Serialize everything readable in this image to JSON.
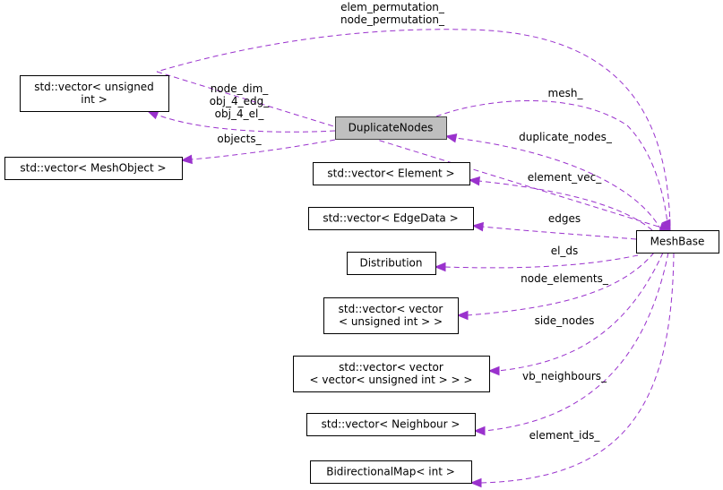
{
  "nodes": [
    {
      "id": "vec_uint",
      "lines": [
        "std::vector< unsigned",
        "int >"
      ]
    },
    {
      "id": "duplicate_nodes",
      "lines": [
        "DuplicateNodes"
      ],
      "focus": true
    },
    {
      "id": "vec_meshobject",
      "lines": [
        "std::vector< MeshObject >"
      ]
    },
    {
      "id": "vec_element",
      "lines": [
        "std::vector< Element >"
      ]
    },
    {
      "id": "vec_edgedata",
      "lines": [
        "std::vector< EdgeData >"
      ]
    },
    {
      "id": "distribution",
      "lines": [
        "Distribution"
      ]
    },
    {
      "id": "vec_vec_uint",
      "lines": [
        "std::vector< vector",
        "< unsigned int > >"
      ]
    },
    {
      "id": "vec_vec_vec_uint",
      "lines": [
        "std::vector< vector",
        "< vector< unsigned int > > >"
      ]
    },
    {
      "id": "vec_neighbour",
      "lines": [
        "std::vector< Neighbour >"
      ]
    },
    {
      "id": "bidi_map",
      "lines": [
        "BidirectionalMap< int >"
      ]
    },
    {
      "id": "mesh_base",
      "lines": [
        "MeshBase"
      ]
    }
  ],
  "edges": [
    {
      "from": "mesh_base",
      "to": "vec_uint",
      "labels": [
        "elem_permutation_",
        "node_permutation_"
      ]
    },
    {
      "from": "duplicate_nodes",
      "to": "vec_uint",
      "labels": [
        "node_dim_",
        "obj_4_edg_",
        "obj_4_el_"
      ]
    },
    {
      "from": "duplicate_nodes",
      "to": "vec_meshobject",
      "labels": [
        "objects_"
      ]
    },
    {
      "from": "duplicate_nodes",
      "to": "mesh_base",
      "labels": [
        "mesh_"
      ]
    },
    {
      "from": "mesh_base",
      "to": "duplicate_nodes",
      "labels": [
        "duplicate_nodes_"
      ]
    },
    {
      "from": "mesh_base",
      "to": "vec_element",
      "labels": [
        "element_vec_"
      ]
    },
    {
      "from": "mesh_base",
      "to": "vec_edgedata",
      "labels": [
        "edges"
      ]
    },
    {
      "from": "mesh_base",
      "to": "distribution",
      "labels": [
        "el_ds"
      ]
    },
    {
      "from": "mesh_base",
      "to": "vec_vec_uint",
      "labels": [
        "node_elements_"
      ]
    },
    {
      "from": "mesh_base",
      "to": "vec_vec_vec_uint",
      "labels": [
        "side_nodes"
      ]
    },
    {
      "from": "mesh_base",
      "to": "vec_neighbour",
      "labels": [
        "vb_neighbours_"
      ]
    },
    {
      "from": "mesh_base",
      "to": "bidi_map",
      "labels": [
        "element_ids_"
      ]
    }
  ],
  "colors": {
    "edge": "#9a32cd",
    "focus_fill": "#bfbfbf"
  }
}
